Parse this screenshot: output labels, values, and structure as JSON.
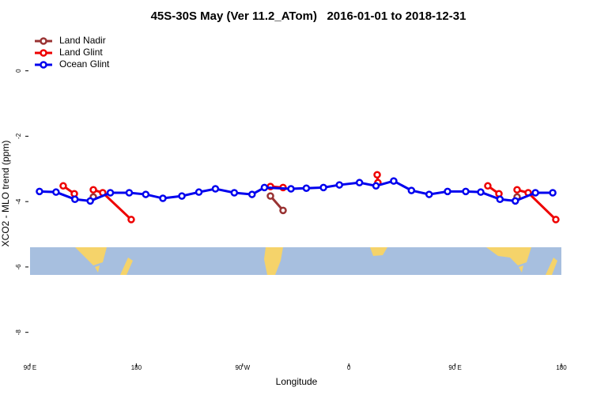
{
  "chart_data": {
    "type": "line",
    "title": "45S-30S May (Ver 11.2_ATom)   2016-01-01 to 2018-12-31",
    "x_label": "Longitude",
    "y_label": "XCO2 - MLO trend (ppm)",
    "xlim": [
      90,
      540
    ],
    "ylim": [
      -8.95,
      1.2
    ],
    "xticks": [
      {
        "value": 90,
        "label": "90 E"
      },
      180,
      {
        "value": 270,
        "label": "90 W"
      },
      {
        "value": 360,
        "label": "0"
      },
      {
        "value": 450,
        "label": "90 E"
      },
      {
        "value": 540,
        "label": "180"
      }
    ],
    "yticks": [
      0,
      -2,
      -4,
      -6,
      -8
    ],
    "legend": "top-left",
    "series": [
      {
        "name": "Land Nadir",
        "color": "#993333",
        "x": [
          143.6,
          null,
          293.6,
          304.3,
          null,
          502.5
        ],
        "values": [
          -3.86,
          null,
          -3.83,
          -4.27,
          null,
          -3.86
        ]
      },
      {
        "name": "Land Glint",
        "color": "#ee0000",
        "x": [
          118.1,
          127.5,
          null,
          143.6,
          151.6,
          175.7,
          null,
          293.6,
          304.3,
          null,
          384,
          384.6,
          null,
          477.7,
          487.1,
          null,
          502.5,
          511.9,
          535.3
        ],
        "values": [
          -3.52,
          -3.76,
          null,
          -3.64,
          -3.73,
          -4.55,
          null,
          -3.54,
          -3.57,
          null,
          -3.18,
          -3.42,
          null,
          -3.52,
          -3.76,
          null,
          -3.64,
          -3.73,
          -4.55
        ]
      },
      {
        "name": "Ocean Glint",
        "color": "#0000ee",
        "x": [
          98,
          112,
          128,
          141,
          158,
          174,
          188,
          202.5,
          218.6,
          233,
          247,
          263,
          278,
          288.5,
          311,
          324,
          338.5,
          352,
          369,
          383,
          398,
          413,
          428,
          443.6,
          459,
          471.7,
          488,
          501,
          518,
          532.7
        ],
        "values": [
          -3.69,
          -3.71,
          -3.93,
          -3.98,
          -3.73,
          -3.73,
          -3.78,
          -3.9,
          -3.83,
          -3.71,
          -3.61,
          -3.73,
          -3.78,
          -3.57,
          -3.61,
          -3.59,
          -3.57,
          -3.49,
          -3.42,
          -3.52,
          -3.37,
          -3.66,
          -3.78,
          -3.69,
          -3.69,
          -3.71,
          -3.93,
          -3.98,
          -3.73,
          -3.73
        ]
      }
    ]
  }
}
